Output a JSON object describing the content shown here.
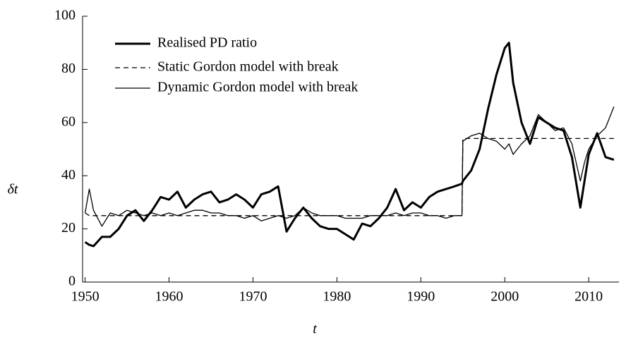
{
  "chart_data": {
    "type": "line",
    "x_label": "t",
    "y_label": "δt",
    "xlim": [
      1949.7,
      2013.6
    ],
    "xticks": [
      1950,
      1960,
      1970,
      1980,
      1990,
      2000,
      2010
    ],
    "ylim": [
      0,
      100
    ],
    "yticks": [
      0,
      20,
      40,
      60,
      80,
      100
    ],
    "legend": "upper left",
    "grid": false,
    "x": [
      1950,
      1950.5,
      1951,
      1952,
      1953,
      1954,
      1955,
      1956,
      1957,
      1958,
      1959,
      1960,
      1961,
      1962,
      1963,
      1964,
      1965,
      1966,
      1967,
      1968,
      1969,
      1970,
      1971,
      1972,
      1973,
      1974,
      1975,
      1976,
      1977,
      1978,
      1979,
      1980,
      1981,
      1982,
      1983,
      1984,
      1985,
      1986,
      1987,
      1988,
      1989,
      1990,
      1991,
      1992,
      1993,
      1994,
      1994.9,
      1995,
      1996,
      1997,
      1998,
      1999,
      2000,
      2000.5,
      2001,
      2002,
      2003,
      2004,
      2005,
      2006,
      2007,
      2008,
      2009,
      2009.5,
      2010,
      2011,
      2012,
      2013
    ],
    "series": [
      {
        "name": "Realised PD ratio",
        "color": "#000000",
        "style": "solid",
        "width": 3,
        "values": [
          15,
          14,
          13.5,
          17,
          17,
          20,
          25,
          27,
          23,
          27,
          32,
          31,
          34,
          28,
          31,
          33,
          34,
          30,
          31,
          33,
          31,
          28,
          33,
          34,
          36,
          19,
          24,
          28,
          24,
          21,
          20,
          20,
          18,
          16,
          22,
          21,
          24,
          28,
          35,
          27,
          30,
          28,
          32,
          34,
          35,
          36,
          37,
          38,
          42,
          50,
          65,
          78,
          88,
          90,
          75,
          60,
          52,
          62,
          60,
          58,
          57,
          47,
          28,
          38,
          48,
          56,
          47,
          46
        ]
      },
      {
        "name": "Static Gordon model with break",
        "color": "#000000",
        "style": "dashed",
        "width": 1.3,
        "values": [
          26,
          25,
          25,
          25,
          25,
          25,
          25,
          25,
          25,
          25,
          25,
          25,
          25,
          25,
          25,
          25,
          25,
          25,
          25,
          25,
          25,
          25,
          25,
          25,
          25,
          25,
          25,
          25,
          25,
          25,
          25,
          25,
          25,
          25,
          25,
          25,
          25,
          25,
          25,
          25,
          25,
          25,
          25,
          25,
          25,
          25,
          25,
          54,
          54,
          54,
          54,
          54,
          54,
          54,
          54,
          54,
          54,
          54,
          54,
          54,
          54,
          54,
          54,
          54,
          54,
          54,
          54,
          54
        ]
      },
      {
        "name": "Dynamic Gordon model with break",
        "color": "#000000",
        "style": "solid",
        "width": 1.3,
        "values": [
          26,
          35,
          27,
          21,
          26,
          25,
          27,
          26,
          25,
          26,
          25,
          26,
          25,
          26,
          27,
          27,
          26,
          26,
          25,
          25,
          24,
          25,
          23,
          24,
          25,
          24,
          25,
          28,
          26,
          25,
          25,
          25,
          24,
          24,
          24,
          25,
          25,
          25,
          26,
          25,
          26,
          26,
          25,
          25,
          24,
          25,
          25,
          53,
          55,
          56,
          54,
          53,
          50,
          52,
          48,
          52,
          55,
          63,
          60,
          57,
          58,
          52,
          38,
          45,
          50,
          55,
          58,
          66
        ]
      }
    ]
  }
}
